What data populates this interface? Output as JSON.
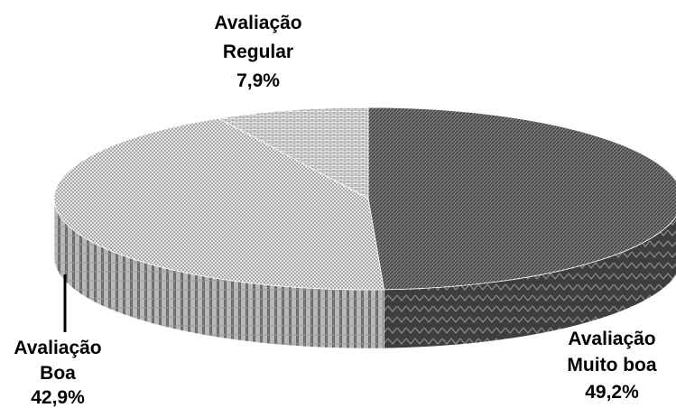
{
  "chart_data": {
    "type": "pie",
    "style": "3d",
    "slices": [
      {
        "line1": "Avaliação",
        "line2": "Muito boa",
        "pct_label": "49,2%",
        "value": 49.2,
        "pattern": "dark-diagonal"
      },
      {
        "line1": "Avaliação",
        "line2": "Boa",
        "pct_label": "42,9%",
        "value": 42.9,
        "pattern": "light-checker"
      },
      {
        "line1": "Avaliação",
        "line2": "Regular",
        "pct_label": "7,9%",
        "value": 7.9,
        "pattern": "brick"
      }
    ],
    "colors": {
      "muito_boa_base": "#6a6a6a",
      "boa_base": "#d4d4d4",
      "regular_base": "#e2e2e2"
    }
  }
}
